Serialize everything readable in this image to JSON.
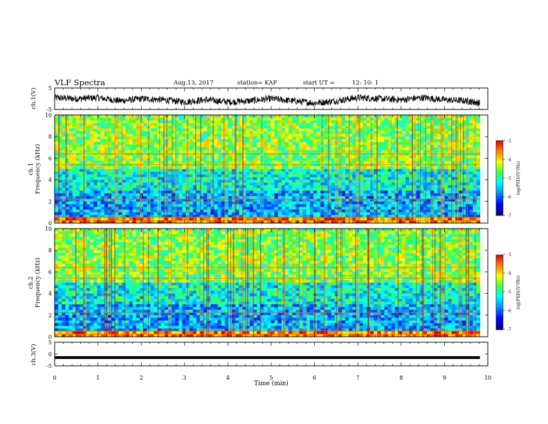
{
  "header": {
    "title": "VLF Spectra",
    "date": "Aug.13, 2017",
    "station": "station= KAP",
    "start_label": "start  UT  =",
    "start_time": "12: 10: 1"
  },
  "chart_data": [
    {
      "type": "line",
      "panel": "ch1-waveform",
      "ylabel": "ch.1(V)",
      "ylim": [
        -5,
        5
      ],
      "yticks": [
        "5",
        "-5"
      ],
      "xlim": [
        0,
        10
      ],
      "x_end": 9.82,
      "series": [
        {
          "values_note_free": true,
          "x": [
            0,
            0.5,
            1,
            1.5,
            2,
            2.5,
            3,
            3.5,
            4,
            4.5,
            5,
            5.5,
            6,
            6.5,
            7,
            7.5,
            8,
            8.5,
            9,
            9.5,
            9.82
          ],
          "y": [
            0.5,
            0,
            0.5,
            -1,
            0,
            -0.5,
            -1.5,
            -0.5,
            -1.5,
            -1,
            0,
            -1,
            -2,
            -1,
            0.5,
            0,
            -0.5,
            0.5,
            -0.5,
            -1,
            -2
          ]
        }
      ]
    },
    {
      "type": "heatmap",
      "panel": "ch1-spectrogram",
      "ylabel_line1": "ch.1",
      "ylabel_line2": "Frequency (kHz)",
      "ylim": [
        0,
        10
      ],
      "yticks": [
        "0",
        "2",
        "4",
        "6",
        "8",
        "10"
      ],
      "xlim": [
        0,
        10
      ],
      "x_end": 9.82,
      "colorbar": {
        "label": "log(PSD)(V²/Hz)",
        "range": [
          -7,
          -3
        ],
        "ticks": [
          "-3",
          "-4",
          "-5",
          "-6",
          "-7"
        ]
      }
    },
    {
      "type": "heatmap",
      "panel": "ch2-spectrogram",
      "ylabel_line1": "ch.2",
      "ylabel_line2": "Frequency (kHz)",
      "ylim": [
        0,
        10
      ],
      "yticks": [
        "0",
        "2",
        "4",
        "6",
        "8",
        "10"
      ],
      "xlim": [
        0,
        10
      ],
      "x_end": 9.82,
      "colorbar": {
        "label": "log(PSD)(V²/Hz)",
        "range": [
          -7,
          -3
        ],
        "ticks": [
          "-3",
          "-4",
          "-5",
          "-6",
          "-7"
        ]
      }
    },
    {
      "type": "line",
      "panel": "ch3-waveform",
      "ylabel": "ch.3(V)",
      "ylim": [
        -5,
        5
      ],
      "yticks": [
        "5",
        "0",
        "-5"
      ],
      "xlim": [
        0,
        10
      ],
      "x_end": 9.82,
      "series": [
        {
          "x": [
            0,
            9.82
          ],
          "y": [
            -1.5,
            -1.5
          ]
        }
      ]
    }
  ],
  "xaxis": {
    "label": "Time (min)",
    "ticks": [
      "0",
      "1",
      "2",
      "3",
      "4",
      "5",
      "6",
      "7",
      "8",
      "9",
      "10"
    ]
  }
}
